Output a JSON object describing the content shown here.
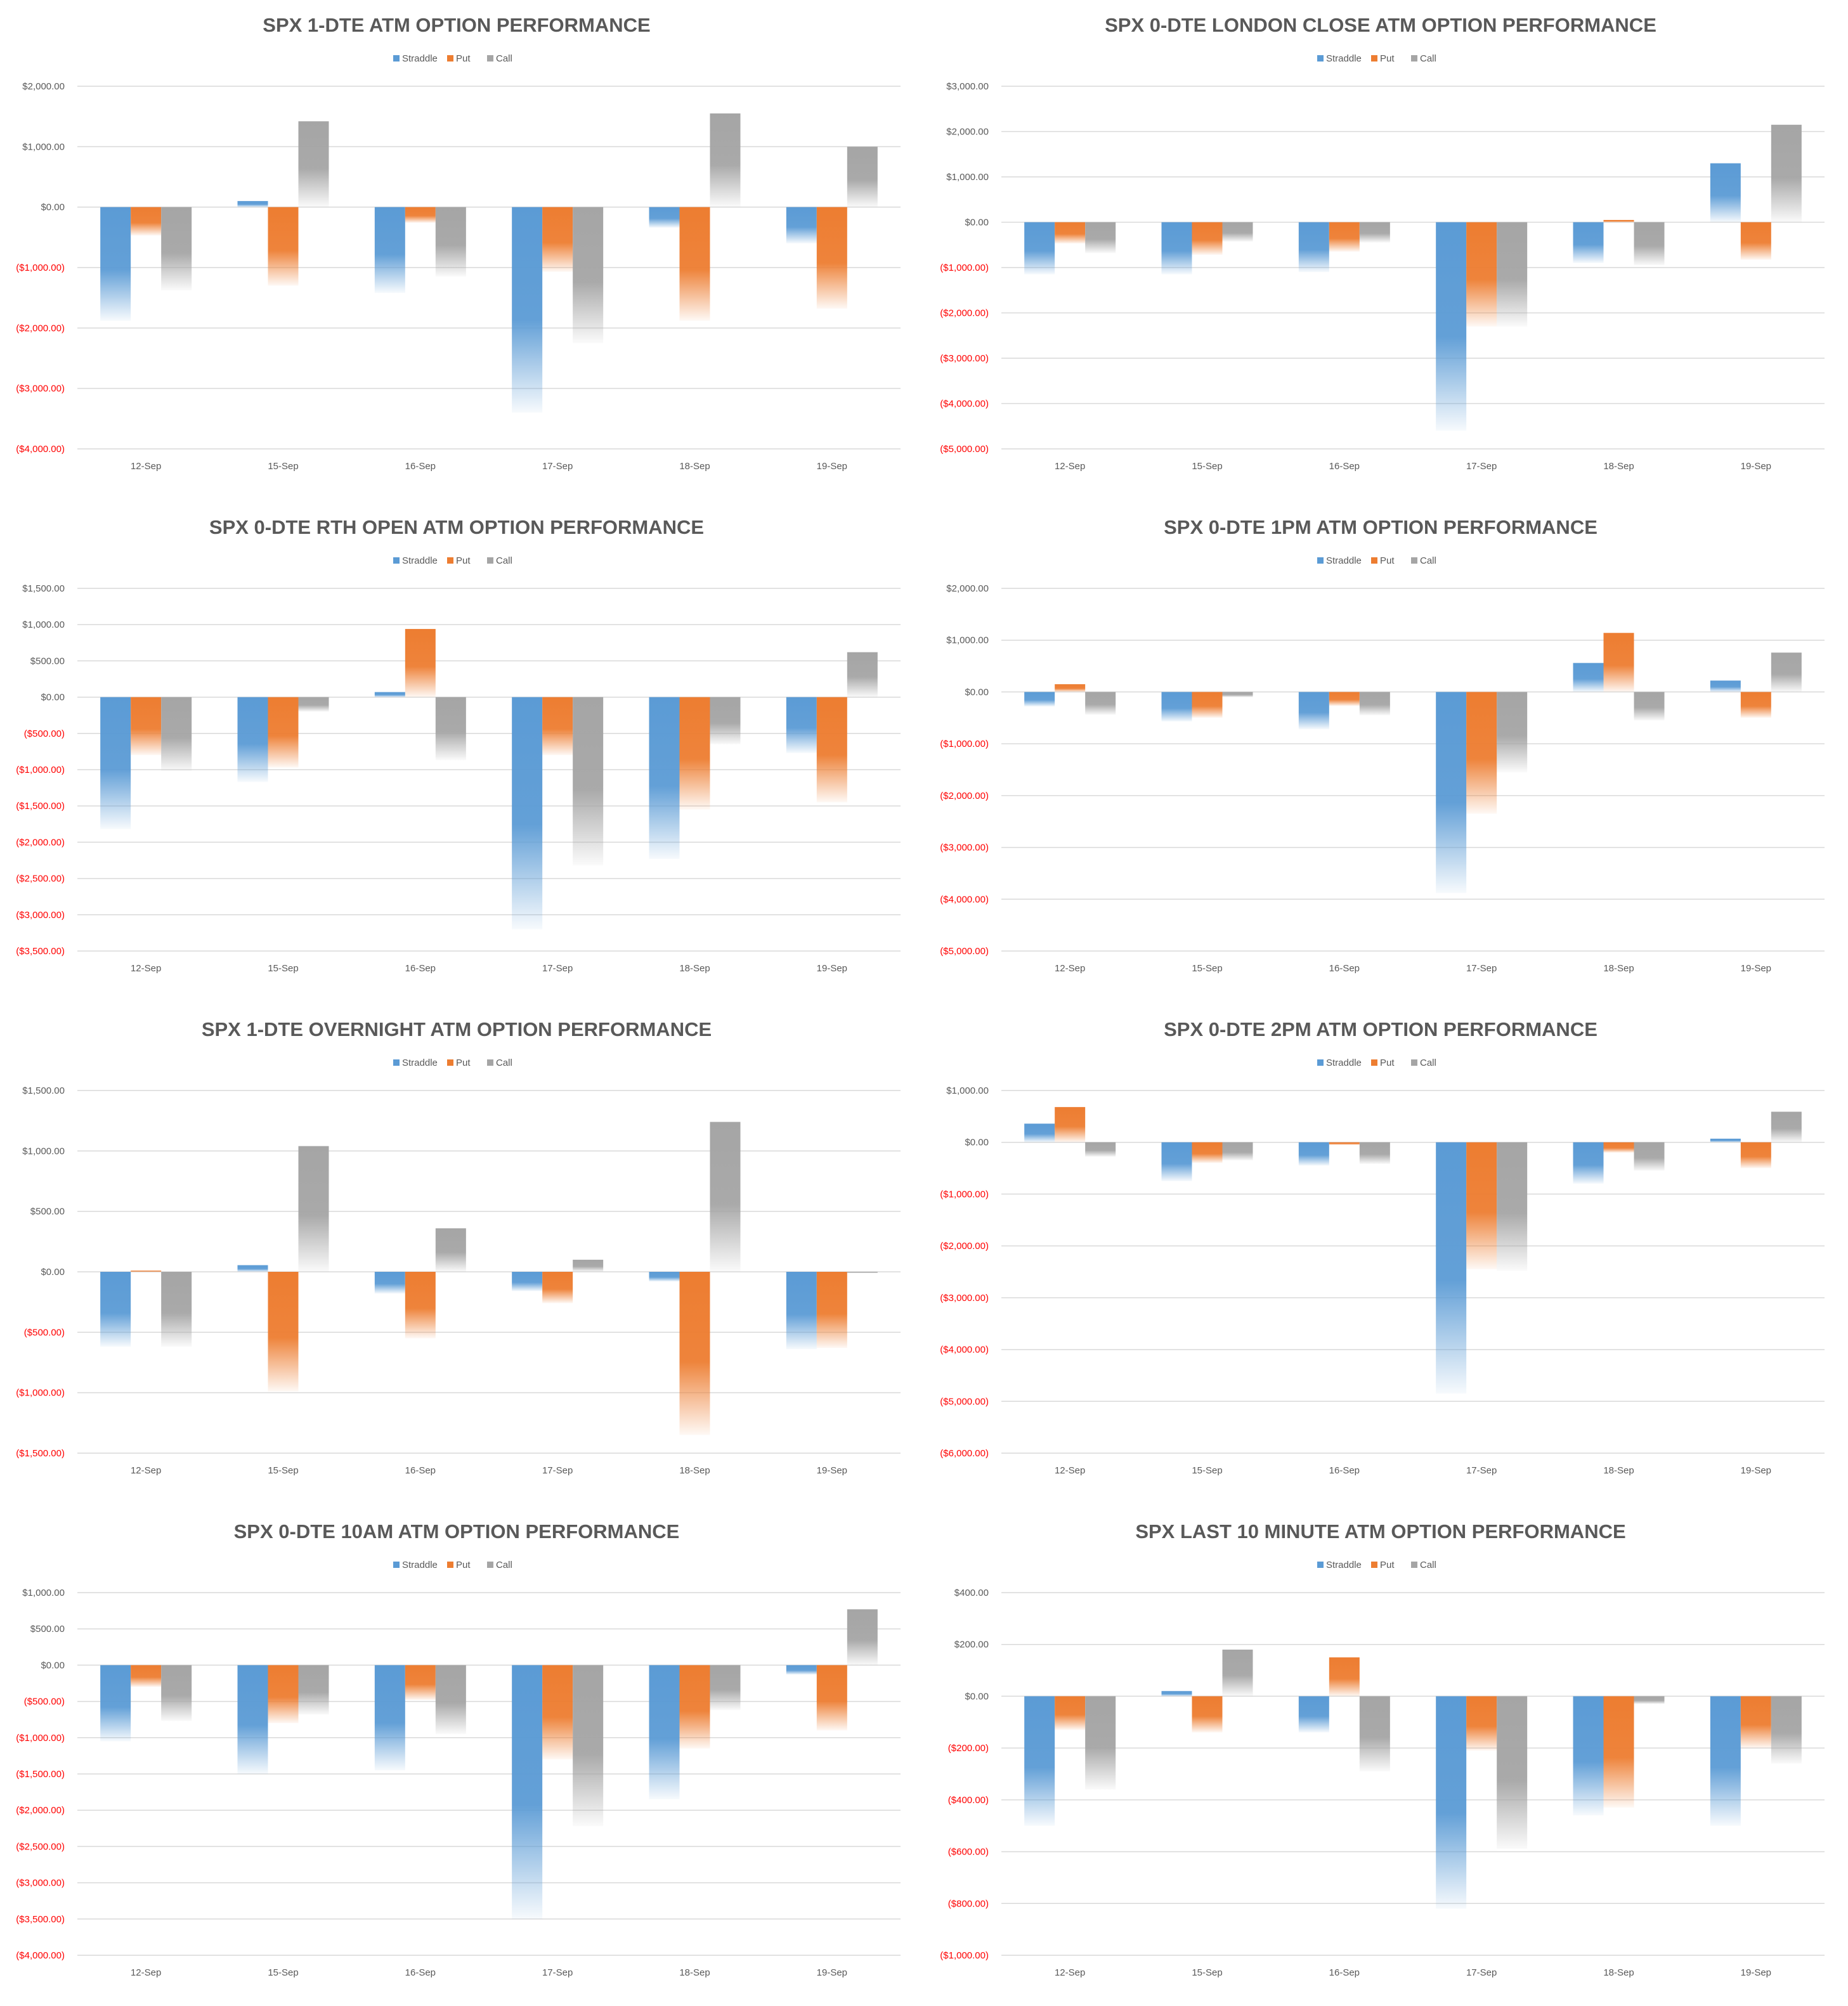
{
  "colors": {
    "straddle": "#5b9bd5",
    "put": "#ed7d31",
    "call": "#a5a5a5",
    "negative_tick": "#ff0000",
    "tick": "#595959",
    "grid": "#d9d9d9"
  },
  "legend": [
    "Straddle",
    "Put",
    "Call"
  ],
  "chart_data": [
    {
      "type": "bar",
      "title": "SPX 1-DTE ATM OPTION PERFORMANCE",
      "categories": [
        "12-Sep",
        "15-Sep",
        "16-Sep",
        "17-Sep",
        "18-Sep",
        "19-Sep"
      ],
      "ylim": [
        -4000,
        2000
      ],
      "yticks": [
        2000,
        1000,
        0,
        -1000,
        -2000,
        -3000,
        -4000
      ],
      "ytick_labels": [
        "$2,000.00",
        "$1,000.00",
        "$0.00",
        "($1,000.00)",
        "($2,000.00)",
        "($3,000.00)",
        "($4,000.00)"
      ],
      "series": [
        {
          "name": "Straddle",
          "values": [
            -1880,
            100,
            -1420,
            -3400,
            -340,
            -600
          ]
        },
        {
          "name": "Put",
          "values": [
            -470,
            -1300,
            -260,
            -1070,
            -1880,
            -1680
          ]
        },
        {
          "name": "Call",
          "values": [
            -1380,
            1420,
            -1150,
            -2250,
            1550,
            1000
          ]
        }
      ]
    },
    {
      "type": "bar",
      "title": "SPX 0-DTE  LONDON CLOSE ATM OPTION PERFORMANCE",
      "categories": [
        "12-Sep",
        "15-Sep",
        "16-Sep",
        "17-Sep",
        "18-Sep",
        "19-Sep"
      ],
      "ylim": [
        -5000,
        3000
      ],
      "yticks": [
        3000,
        2000,
        1000,
        0,
        -1000,
        -2000,
        -3000,
        -4000,
        -5000
      ],
      "ytick_labels": [
        "$3,000.00",
        "$2,000.00",
        "$1,000.00",
        "$0.00",
        "($1,000.00)",
        "($2,000.00)",
        "($3,000.00)",
        "($4,000.00)",
        "($5,000.00)"
      ],
      "series": [
        {
          "name": "Straddle",
          "values": [
            -1150,
            -1150,
            -1100,
            -4600,
            -900,
            1300
          ]
        },
        {
          "name": "Put",
          "values": [
            -470,
            -720,
            -650,
            -2300,
            50,
            -830
          ]
        },
        {
          "name": "Call",
          "values": [
            -680,
            -430,
            -450,
            -2300,
            -950,
            2150
          ]
        }
      ]
    },
    {
      "type": "bar",
      "title": "SPX 0-DTE RTH OPEN ATM OPTION PERFORMANCE",
      "categories": [
        "12-Sep",
        "15-Sep",
        "16-Sep",
        "17-Sep",
        "18-Sep",
        "19-Sep"
      ],
      "ylim": [
        -3500,
        1500
      ],
      "yticks": [
        1500,
        1000,
        500,
        0,
        -500,
        -1000,
        -1500,
        -2000,
        -2500,
        -3000,
        -3500
      ],
      "ytick_labels": [
        "$1,500.00",
        "$1,000.00",
        "$500.00",
        "$0.00",
        "($500.00)",
        "($1,000.00)",
        "($1,500.00)",
        "($2,000.00)",
        "($2,500.00)",
        "($3,000.00)",
        "($3,500.00)"
      ],
      "series": [
        {
          "name": "Straddle",
          "values": [
            -1820,
            -1170,
            70,
            -3200,
            -2230,
            -770
          ]
        },
        {
          "name": "Put",
          "values": [
            -800,
            -970,
            940,
            -800,
            -1550,
            -1450
          ]
        },
        {
          "name": "Call",
          "values": [
            -1020,
            -200,
            -870,
            -2320,
            -650,
            620
          ]
        }
      ]
    },
    {
      "type": "bar",
      "title": "SPX 0-DTE 1PM ATM OPTION PERFORMANCE",
      "categories": [
        "12-Sep",
        "15-Sep",
        "16-Sep",
        "17-Sep",
        "18-Sep",
        "19-Sep"
      ],
      "ylim": [
        -5000,
        2000
      ],
      "yticks": [
        2000,
        1000,
        0,
        -1000,
        -2000,
        -3000,
        -4000,
        -5000
      ],
      "ytick_labels": [
        "$2,000.00",
        "$1,000.00",
        "$0.00",
        "($1,000.00)",
        "($2,000.00)",
        "($3,000.00)",
        "($4,000.00)",
        "($5,000.00)"
      ],
      "series": [
        {
          "name": "Straddle",
          "values": [
            -280,
            -570,
            -720,
            -3880,
            560,
            220
          ]
        },
        {
          "name": "Put",
          "values": [
            150,
            -500,
            -270,
            -2350,
            1140,
            -500
          ]
        },
        {
          "name": "Call",
          "values": [
            -440,
            -100,
            -450,
            -1550,
            -550,
            760
          ]
        }
      ]
    },
    {
      "type": "bar",
      "title": "SPX 1-DTE OVERNIGHT ATM OPTION PERFORMANCE",
      "categories": [
        "12-Sep",
        "15-Sep",
        "16-Sep",
        "17-Sep",
        "18-Sep",
        "19-Sep"
      ],
      "ylim": [
        -1500,
        1500
      ],
      "yticks": [
        1500,
        1000,
        500,
        0,
        -500,
        -1000,
        -1500
      ],
      "ytick_labels": [
        "$1,500.00",
        "$1,000.00",
        "$500.00",
        "$0.00",
        "($500.00)",
        "($1,000.00)",
        "($1,500.00)"
      ],
      "series": [
        {
          "name": "Straddle",
          "values": [
            -620,
            55,
            -180,
            -160,
            -80,
            -640
          ]
        },
        {
          "name": "Put",
          "values": [
            10,
            -990,
            -550,
            -260,
            -1350,
            -630
          ]
        },
        {
          "name": "Call",
          "values": [
            -620,
            1040,
            360,
            100,
            1240,
            -10
          ]
        }
      ]
    },
    {
      "type": "bar",
      "title": "SPX 0-DTE 2PM ATM OPTION PERFORMANCE",
      "categories": [
        "12-Sep",
        "15-Sep",
        "16-Sep",
        "17-Sep",
        "18-Sep",
        "19-Sep"
      ],
      "ylim": [
        -6000,
        1000
      ],
      "yticks": [
        1000,
        0,
        -1000,
        -2000,
        -3000,
        -4000,
        -5000,
        -6000
      ],
      "ytick_labels": [
        "$1,000.00",
        "$0.00",
        "($1,000.00)",
        "($2,000.00)",
        "($3,000.00)",
        "($4,000.00)",
        "($5,000.00)",
        "($6,000.00)"
      ],
      "series": [
        {
          "name": "Straddle",
          "values": [
            360,
            -750,
            -450,
            -4850,
            -800,
            70
          ]
        },
        {
          "name": "Put",
          "values": [
            680,
            -400,
            -50,
            -2450,
            -200,
            -500
          ]
        },
        {
          "name": "Call",
          "values": [
            -280,
            -350,
            -420,
            -2480,
            -550,
            590
          ]
        }
      ]
    },
    {
      "type": "bar",
      "title": "SPX 0-DTE 10AM ATM OPTION PERFORMANCE",
      "categories": [
        "12-Sep",
        "15-Sep",
        "16-Sep",
        "17-Sep",
        "18-Sep",
        "19-Sep"
      ],
      "ylim": [
        -4000,
        1000
      ],
      "yticks": [
        1000,
        500,
        0,
        -500,
        -1000,
        -1500,
        -2000,
        -2500,
        -3000,
        -3500,
        -4000
      ],
      "ytick_labels": [
        "$1,000.00",
        "$500.00",
        "$0.00",
        "($500.00)",
        "($1,000.00)",
        "($1,500.00)",
        "($2,000.00)",
        "($2,500.00)",
        "($3,000.00)",
        "($3,500.00)",
        "($4,000.00)"
      ],
      "series": [
        {
          "name": "Straddle",
          "values": [
            -1050,
            -1500,
            -1450,
            -3500,
            -1850,
            -130
          ]
        },
        {
          "name": "Put",
          "values": [
            -300,
            -800,
            -480,
            -1300,
            -1150,
            -900
          ]
        },
        {
          "name": "Call",
          "values": [
            -770,
            -680,
            -950,
            -2220,
            -620,
            770
          ]
        }
      ]
    },
    {
      "type": "bar",
      "title": "SPX LAST 10 MINUTE ATM OPTION PERFORMANCE",
      "categories": [
        "12-Sep",
        "15-Sep",
        "16-Sep",
        "17-Sep",
        "18-Sep",
        "19-Sep"
      ],
      "ylim": [
        -1000,
        400
      ],
      "yticks": [
        400,
        200,
        0,
        -200,
        -400,
        -600,
        -800,
        -1000
      ],
      "ytick_labels": [
        "$400.00",
        "$200.00",
        "$0.00",
        "($200.00)",
        "($400.00)",
        "($600.00)",
        "($800.00)",
        "($1,000.00)"
      ],
      "series": [
        {
          "name": "Straddle",
          "values": [
            -500,
            20,
            -140,
            -820,
            -460,
            -500
          ]
        },
        {
          "name": "Put",
          "values": [
            -130,
            -140,
            150,
            -210,
            -430,
            -200
          ]
        },
        {
          "name": "Call",
          "values": [
            -360,
            180,
            -290,
            -590,
            -30,
            -260
          ]
        }
      ]
    }
  ]
}
